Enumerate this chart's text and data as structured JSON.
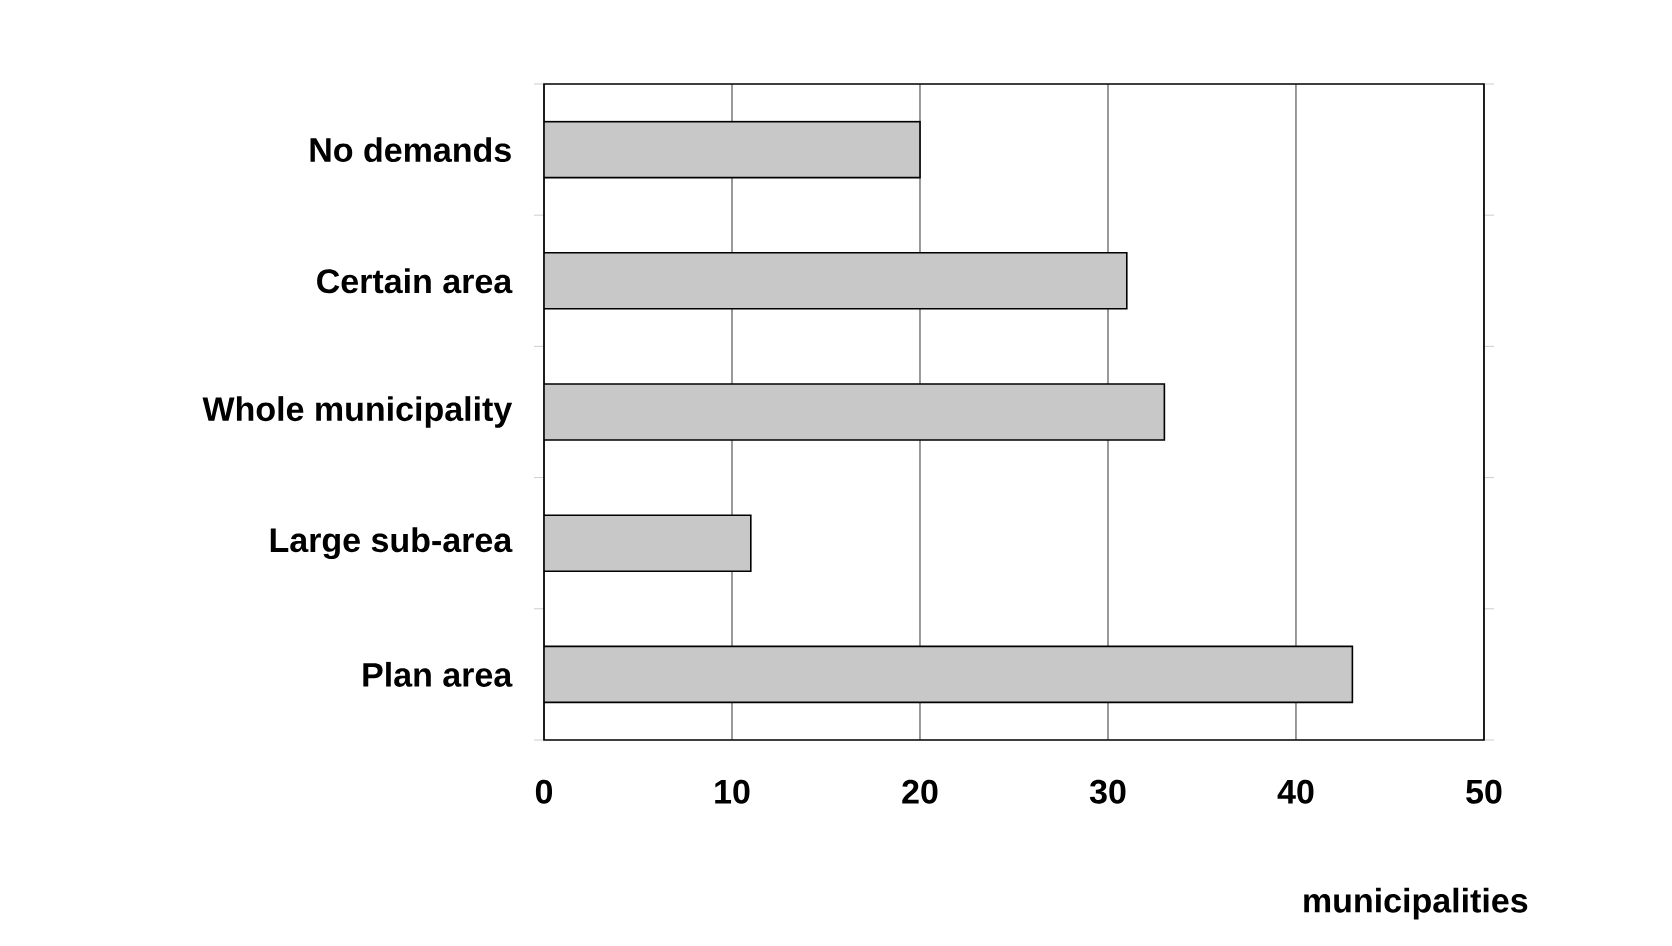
{
  "chart_data": {
    "type": "bar",
    "orientation": "horizontal",
    "categories": [
      "No demands",
      "Certain area",
      "Whole municipality",
      "Large sub-area",
      "Plan area"
    ],
    "values": [
      20,
      31,
      33,
      11,
      43
    ],
    "color": "#c8c8c8",
    "xlabel": "municipalities",
    "xlim": [
      0,
      50
    ],
    "xticks": [
      0,
      10,
      20,
      30,
      40,
      50
    ],
    "grid": "x"
  }
}
